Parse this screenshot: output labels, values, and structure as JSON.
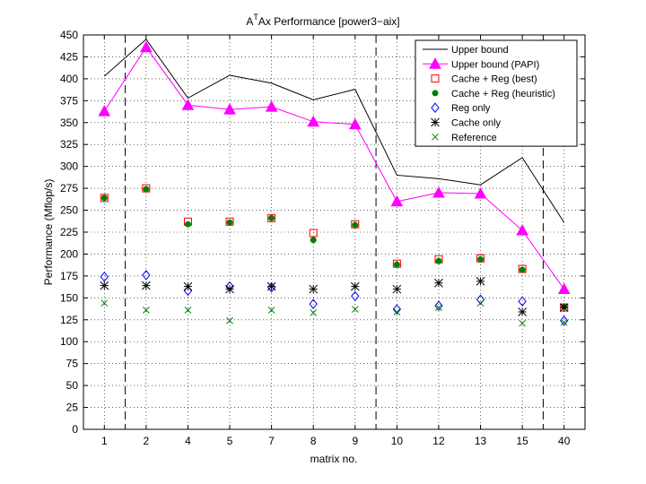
{
  "chart_data": {
    "type": "line",
    "title_prefix": "A",
    "title_sup": "T",
    "title_suffix": "Ax Performance [power3−aix]",
    "xlabel": "matrix no.",
    "ylabel": "Performance (Mflop/s)",
    "categories": [
      "1",
      "2",
      "4",
      "5",
      "7",
      "8",
      "9",
      "10",
      "12",
      "13",
      "15",
      "40"
    ],
    "ylim": [
      0,
      450
    ],
    "yticks": [
      0,
      25,
      50,
      75,
      100,
      125,
      150,
      175,
      200,
      225,
      250,
      275,
      300,
      325,
      350,
      375,
      400,
      425,
      450
    ],
    "grid": "dotted",
    "legend_position": "top-right",
    "separator_after_index": [
      0,
      6,
      10
    ],
    "series": [
      {
        "name": "Upper bound",
        "marker": "line",
        "color": "#000000",
        "values": [
          403,
          445,
          378,
          404,
          395,
          376,
          388,
          290,
          286,
          279,
          310,
          236
        ]
      },
      {
        "name": "Upper bound (PAPI)",
        "marker": "triangle",
        "color": "#ff00ff",
        "values": [
          363,
          436,
          370,
          365,
          368,
          351,
          348,
          260,
          270,
          269,
          227,
          160
        ]
      },
      {
        "name": "Cache + Reg (best)",
        "marker": "square",
        "color": "#ff0000",
        "values": [
          264,
          275,
          237,
          237,
          241,
          224,
          234,
          189,
          194,
          195,
          183,
          139
        ]
      },
      {
        "name": "Cache + Reg (heuristic)",
        "marker": "dot",
        "color": "#008000",
        "values": [
          264,
          274,
          234,
          236,
          241,
          216,
          233,
          188,
          192,
          194,
          182,
          140
        ]
      },
      {
        "name": "Reg only",
        "marker": "diamond",
        "color": "#0000ff",
        "values": [
          174,
          176,
          158,
          163,
          162,
          143,
          152,
          137,
          141,
          148,
          146,
          124
        ]
      },
      {
        "name": "Cache only",
        "marker": "star",
        "color": "#000000",
        "values": [
          164,
          164,
          163,
          160,
          163,
          160,
          163,
          160,
          167,
          169,
          134,
          139
        ]
      },
      {
        "name": "Reference",
        "marker": "x",
        "color": "#008000",
        "values": [
          144,
          136,
          136,
          124,
          136,
          133,
          137,
          134,
          139,
          144,
          121,
          122
        ]
      }
    ]
  }
}
